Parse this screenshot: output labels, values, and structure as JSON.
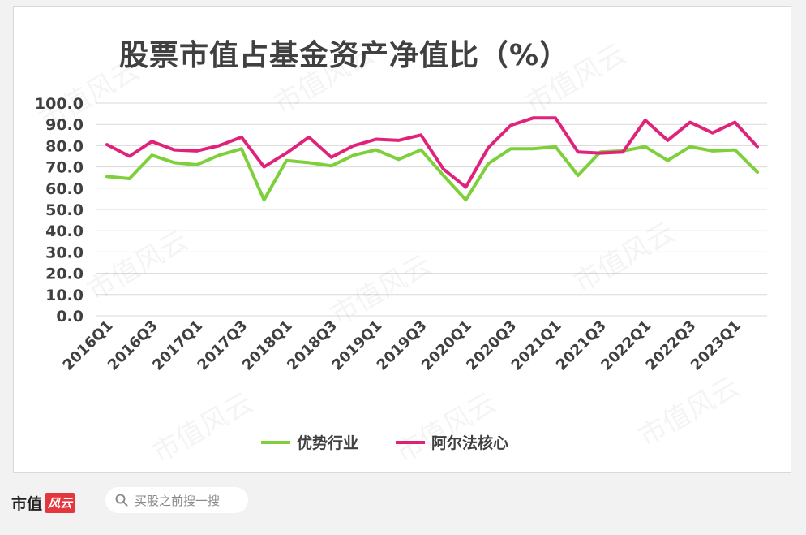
{
  "title": "股票市值占基金资产净值比（%）",
  "footer": {
    "logo_main": "市值",
    "logo_accent": "风云",
    "search_placeholder": "买股之前搜一搜",
    "icon": "search-icon"
  },
  "watermark_text": "市值风云",
  "chart_data": {
    "type": "line",
    "title": "股票市值占基金资产净值比（%）",
    "xlabel": "",
    "ylabel": "",
    "ylim": [
      0,
      100
    ],
    "ytick_step": 10,
    "y_tick_labels": [
      "0.0",
      "10.0",
      "20.0",
      "30.0",
      "40.0",
      "50.0",
      "60.0",
      "70.0",
      "80.0",
      "90.0",
      "100.0"
    ],
    "grid": true,
    "legend_position": "bottom",
    "x": [
      "2016Q1",
      "2016Q2",
      "2016Q3",
      "2016Q4",
      "2017Q1",
      "2017Q2",
      "2017Q3",
      "2017Q4",
      "2018Q1",
      "2018Q2",
      "2018Q3",
      "2018Q4",
      "2019Q1",
      "2019Q2",
      "2019Q3",
      "2019Q4",
      "2020Q1",
      "2020Q2",
      "2020Q3",
      "2020Q4",
      "2021Q1",
      "2021Q2",
      "2021Q3",
      "2021Q4",
      "2022Q1",
      "2022Q2",
      "2022Q3",
      "2022Q4",
      "2023Q1",
      "2023Q2"
    ],
    "x_tick_labels": [
      "2016Q1",
      "2016Q3",
      "2017Q1",
      "2017Q3",
      "2018Q1",
      "2018Q3",
      "2019Q1",
      "2019Q3",
      "2020Q1",
      "2020Q3",
      "2021Q1",
      "2021Q3",
      "2022Q1",
      "2022Q3",
      "2023Q1"
    ],
    "series": [
      {
        "name": "优势行业",
        "color": "#7ed03a",
        "values": [
          65.5,
          64.5,
          75.5,
          72,
          71,
          75.5,
          78.5,
          54.5,
          73,
          72,
          70.5,
          75.5,
          78,
          73.5,
          78,
          66,
          54.5,
          71.5,
          78.5,
          78.5,
          79.5,
          66,
          77,
          77.5,
          79.5,
          73,
          79.5,
          77.5,
          78,
          67.5
        ]
      },
      {
        "name": "阿尔法核心",
        "color": "#e0237a",
        "values": [
          80.5,
          75,
          82,
          78,
          77.5,
          80,
          84,
          70,
          76.5,
          84,
          74.5,
          80,
          83,
          82.5,
          85,
          69,
          60.5,
          79,
          89.5,
          93,
          93,
          77,
          76.5,
          77,
          92,
          82.5,
          91,
          86,
          91,
          79.5
        ]
      }
    ]
  }
}
